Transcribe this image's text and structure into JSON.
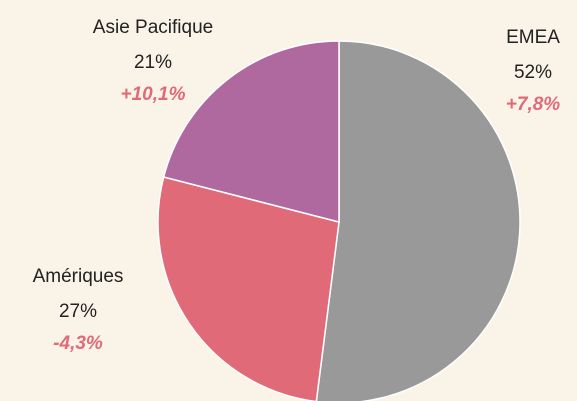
{
  "chart_data": {
    "type": "pie",
    "categories": [
      "EMEA",
      "Amériques",
      "Asie Pacifique"
    ],
    "values": [
      52,
      27,
      21
    ],
    "value_labels": [
      "52%",
      "27%",
      "21%"
    ],
    "annotations": [
      "+7,8%",
      "-4,3%",
      "+10,1%"
    ],
    "colors": [
      "#999999",
      "#e06a78",
      "#b0699e"
    ],
    "annotation_color": "#e06a78"
  }
}
